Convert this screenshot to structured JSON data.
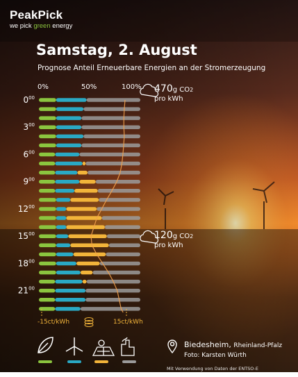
{
  "brand": {
    "logo": "PeakPick",
    "tagline_pre": "we pick ",
    "tagline_green": "green",
    "tagline_post": " energy"
  },
  "title": "Samstag, 2. August",
  "subtitle": "Prognose Anteil Erneuerbare Energien an der Stromerzeugung",
  "colors": {
    "biomass": "#8bc53f",
    "wind": "#2aa9c4",
    "solar": "#f2b43a",
    "conventional": "#9b9b9b",
    "co2_line": "#f3a14b"
  },
  "co2_high": {
    "value": "470",
    "unit": "g",
    "gas": "CO",
    "sub": "2",
    "per": "pro kWh"
  },
  "co2_low": {
    "value": "120",
    "unit": "g",
    "gas": "CO",
    "sub": "2",
    "per": "pro kWh"
  },
  "price_scale": {
    "left": "-15ct/kWh",
    "right": "15ct/kWh"
  },
  "location": {
    "city": "Biedesheim,",
    "region": "Rheinland-Pfalz",
    "photo": "Foto: Karsten Würth"
  },
  "credit": "Mit Verwendung von Daten der ENTSO-E Transparenzplattform",
  "icons": [
    "leaf-icon",
    "wind-turbine-icon",
    "solar-panel-icon",
    "power-plant-icon"
  ],
  "chart_data": {
    "type": "bar",
    "stacked": true,
    "horizontal": true,
    "title": "Prognose Anteil Erneuerbare Energien an der Stromerzeugung",
    "xlim": [
      0,
      100
    ],
    "x_tick_labels": [
      "0%",
      "50%",
      "100%"
    ],
    "time_tick_labels": [
      {
        "h": "0",
        "m": "00"
      },
      {
        "h": "3",
        "m": "00"
      },
      {
        "h": "6",
        "m": "00"
      },
      {
        "h": "9",
        "m": "00"
      },
      {
        "h": "12",
        "m": "00"
      },
      {
        "h": "15",
        "m": "00"
      },
      {
        "h": "18",
        "m": "00"
      },
      {
        "h": "21",
        "m": "00"
      }
    ],
    "categories": [
      "0",
      "1",
      "2",
      "3",
      "4",
      "5",
      "6",
      "7",
      "8",
      "9",
      "10",
      "11",
      "12",
      "13",
      "14",
      "15",
      "16",
      "17",
      "18",
      "19",
      "20",
      "21",
      "22",
      "23"
    ],
    "series": [
      {
        "values": [
          17,
          17,
          17,
          17,
          17,
          17,
          16,
          16,
          16,
          16,
          16,
          17,
          17,
          17,
          17,
          17,
          17,
          17,
          17,
          17,
          16,
          16,
          16,
          16
        ]
      },
      {
        "values": [
          30,
          27,
          25,
          25,
          27,
          25,
          24,
          27,
          22,
          24,
          19,
          14,
          10,
          10,
          10,
          12,
          14,
          17,
          20,
          24,
          27,
          30,
          30,
          25
        ]
      },
      {
        "values": [
          0,
          0,
          0,
          0,
          0,
          0,
          0,
          3,
          10,
          16,
          23,
          28,
          30,
          35,
          38,
          38,
          38,
          32,
          23,
          12,
          4,
          0,
          0,
          0
        ]
      },
      {
        "values": [
          53,
          56,
          58,
          58,
          56,
          58,
          60,
          54,
          52,
          44,
          42,
          41,
          43,
          38,
          35,
          33,
          31,
          34,
          40,
          47,
          53,
          54,
          54,
          59
        ]
      }
    ],
    "co2_line_values": [
      470,
      462,
      458,
      458,
      462,
      456,
      448,
      438,
      420,
      385,
      335,
      280,
      230,
      180,
      150,
      120,
      130,
      180,
      240,
      300,
      350,
      390,
      410,
      430
    ]
  }
}
